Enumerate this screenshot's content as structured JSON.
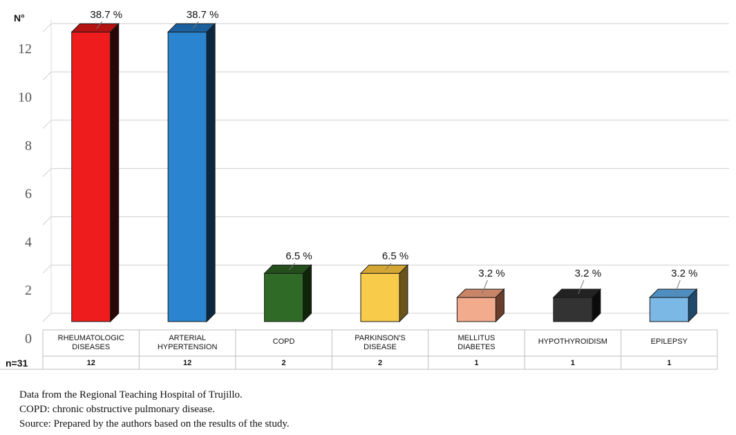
{
  "chart_data": {
    "type": "bar",
    "ylabel": "N°",
    "ylim": [
      0,
      12
    ],
    "yticks": [
      0,
      2,
      4,
      6,
      8,
      10,
      12
    ],
    "grid": true,
    "categories": [
      [
        "RHEUMATOLOGIC",
        "DISEASES"
      ],
      [
        "ARTERIAL",
        "HYPERTENSION"
      ],
      [
        "COPD"
      ],
      [
        "PARKINSON'S",
        "DISEASE"
      ],
      [
        "MELLITUS",
        "DIABETES"
      ],
      [
        "HYPOTHYROIDISM"
      ],
      [
        "EPILEPSY"
      ]
    ],
    "values": [
      12,
      12,
      2,
      2,
      1,
      1,
      1
    ],
    "percent_labels": [
      "38.7 %",
      "38.7 %",
      "6.5 %",
      "6.5 %",
      "3.2 %",
      "3.2 %",
      "3.2 %"
    ],
    "counts": [
      "12",
      "12",
      "2",
      "2",
      "1",
      "1",
      "1"
    ],
    "n_label": "n=31",
    "colors": [
      {
        "front": "#ee1c1c",
        "top": "#b51212",
        "side": "#2a0707"
      },
      {
        "front": "#2a84d0",
        "top": "#1b5f9c",
        "side": "#0b2840"
      },
      {
        "front": "#2f6a26",
        "top": "#244f1d",
        "side": "#102409"
      },
      {
        "front": "#f8cb4a",
        "top": "#d4a734",
        "side": "#6b5419"
      },
      {
        "front": "#f3ab8e",
        "top": "#c88467",
        "side": "#6a3e2d"
      },
      {
        "front": "#333333",
        "top": "#222222",
        "side": "#0b0b0b"
      },
      {
        "front": "#7bb8e6",
        "top": "#4f8ec0",
        "side": "#1f4a6e"
      }
    ]
  },
  "notes": [
    "Data from the Regional Teaching Hospital of Trujillo.",
    "COPD: chronic obstructive pulmonary disease.",
    "Source: Prepared by the authors based on the results of the study."
  ]
}
